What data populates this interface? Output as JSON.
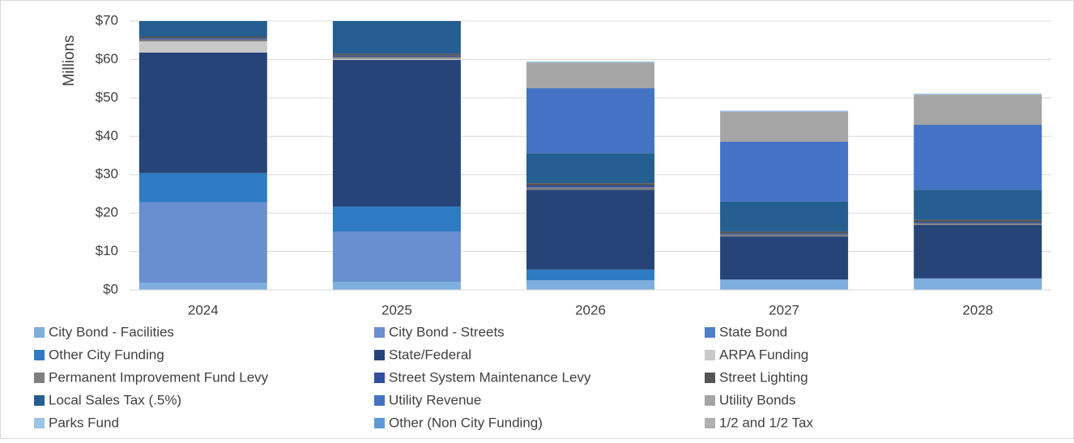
{
  "chart_data": {
    "type": "stacked_bar",
    "y_axis_label": "Millions",
    "categories": [
      "2024",
      "2025",
      "2026",
      "2027",
      "2028"
    ],
    "ylim": [
      0,
      70
    ],
    "yticks": [
      {
        "value": 0,
        "label": "$0"
      },
      {
        "value": 10,
        "label": "$10"
      },
      {
        "value": 20,
        "label": "$20"
      },
      {
        "value": 30,
        "label": "$30"
      },
      {
        "value": 40,
        "label": "$40"
      },
      {
        "value": 50,
        "label": "$50"
      },
      {
        "value": 60,
        "label": "$60"
      },
      {
        "value": 70,
        "label": "$70"
      }
    ],
    "grid": true,
    "series": [
      {
        "name": "City Bond - Facilities",
        "color": "#7eaedd",
        "values": [
          1.9,
          2.1,
          2.5,
          2.7,
          3.0
        ]
      },
      {
        "name": "City Bond - Streets",
        "color": "#6a8fd0",
        "values": [
          20.9,
          13.1,
          0,
          0,
          0
        ]
      },
      {
        "name": "State Bond",
        "color": "#4f7fc7",
        "values": [
          0,
          0,
          0,
          0,
          0
        ]
      },
      {
        "name": "Other City Funding",
        "color": "#2e7bc4",
        "values": [
          7.6,
          6.5,
          2.8,
          0,
          0
        ]
      },
      {
        "name": "State/Federal",
        "color": "#264478",
        "values": [
          31.4,
          38.2,
          20.8,
          11.2,
          13.9
        ]
      },
      {
        "name": "ARPA Funding",
        "color": "#c9c9c9",
        "values": [
          2.9,
          0.3,
          0,
          0,
          0
        ]
      },
      {
        "name": "Permanent Improvement Fund Levy",
        "color": "#7f7f7f",
        "values": [
          0.5,
          0.5,
          0.6,
          0.5,
          0.5
        ]
      },
      {
        "name": "Street System Maintenance Levy",
        "color": "#2f4fa0",
        "values": [
          0.3,
          0.3,
          0.5,
          0.3,
          0.3
        ]
      },
      {
        "name": "Street Lighting",
        "color": "#555555",
        "values": [
          0.5,
          0.5,
          0.6,
          0.5,
          0.6
        ]
      },
      {
        "name": "Local Sales Tax (.5%)",
        "color": "#255e91",
        "values": [
          4.0,
          8.5,
          7.8,
          7.8,
          7.8
        ]
      },
      {
        "name": "Utility Revenue",
        "color": "#4472c4",
        "values": [
          0,
          0,
          16.9,
          15.6,
          16.9
        ]
      },
      {
        "name": "Utility Bonds",
        "color": "#a5a5a5",
        "values": [
          0,
          0,
          6.7,
          7.8,
          7.8
        ]
      },
      {
        "name": "Parks Fund",
        "color": "#9dc3e6",
        "values": [
          0,
          0,
          0.3,
          0.3,
          0.3
        ]
      },
      {
        "name": "Other (Non City Funding)",
        "color": "#5b9bd5",
        "values": [
          0,
          0,
          0,
          0,
          0
        ]
      },
      {
        "name": "1/2 and 1/2 Tax",
        "color": "#b0b0b0",
        "values": [
          0,
          0,
          0,
          0,
          0
        ]
      }
    ]
  }
}
